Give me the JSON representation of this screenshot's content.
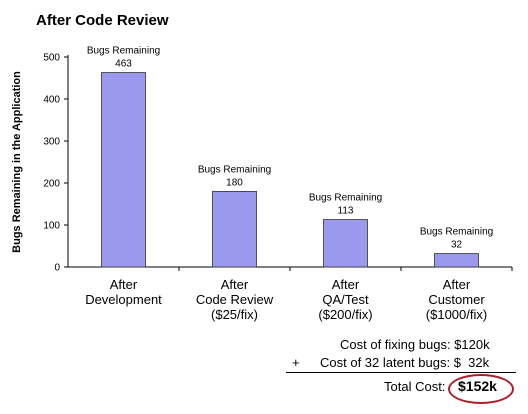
{
  "chart_data": {
    "type": "bar",
    "title": "After Code Review",
    "ylabel": "Bugs Remaining in the Application",
    "xlabel": "",
    "ylim": [
      0,
      500
    ],
    "yticks": [
      0,
      100,
      200,
      300,
      400,
      500
    ],
    "grid": false,
    "bar_color": "#9a99ee",
    "categories": [
      [
        "After",
        "Development"
      ],
      [
        "After",
        "Code Review",
        "($25/fix)"
      ],
      [
        "After",
        "QA/Test",
        "($200/fix)"
      ],
      [
        "After",
        "Customer",
        "($1000/fix)"
      ]
    ],
    "values": [
      463,
      180,
      113,
      32
    ],
    "bar_label_caption": "Bugs Remaining"
  },
  "costs": {
    "line1": "Cost of fixing bugs: $120k",
    "plus": "+",
    "line2": "Cost of 32 latent bugs: $  32k",
    "total_label": "Total Cost:",
    "total_value": "$152k",
    "highlight_color": "#b01c28"
  }
}
